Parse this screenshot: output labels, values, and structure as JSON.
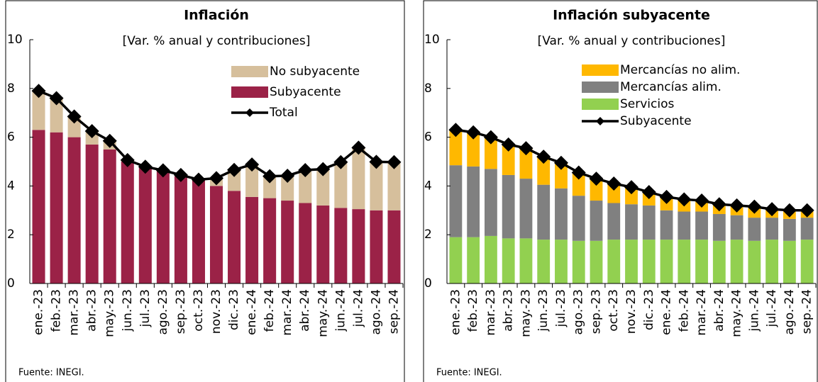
{
  "charts": [
    {
      "type": "bar",
      "stacked": true,
      "title": "Inflación",
      "subtitle": "[Var. % anual y contribuciones]",
      "source": "Fuente: INEGI.",
      "legend": "upper right",
      "categories": [
        "ene.-23",
        "feb.-23",
        "mar.-23",
        "abr.-23",
        "may.-23",
        "jun.-23",
        "jul.-23",
        "ago.-23",
        "sep.-23",
        "oct.-23",
        "nov.-23",
        "dic.-23",
        "ene.-24",
        "feb.-24",
        "mar.-24",
        "abr.-24",
        "may.-24",
        "jun.-24",
        "jul.-24",
        "ago.-24",
        "sep.-24"
      ],
      "ylim": [
        0,
        10
      ],
      "yticks": [
        0,
        2,
        4,
        6,
        8,
        10
      ],
      "series": [
        {
          "name": "No subyacente",
          "color": "#d6bf9c",
          "values": [
            1.6,
            1.4,
            0.85,
            0.55,
            0.35,
            0.06,
            0.04,
            0.04,
            0.05,
            0.01,
            0.32,
            0.86,
            1.33,
            0.9,
            1.02,
            1.35,
            1.49,
            1.88,
            2.52,
            1.99,
            1.98
          ]
        },
        {
          "name": "Subyacente",
          "color": "#9b2247",
          "values": [
            6.3,
            6.2,
            6.0,
            5.7,
            5.5,
            5.0,
            4.75,
            4.6,
            4.4,
            4.25,
            4.0,
            3.8,
            3.55,
            3.5,
            3.4,
            3.3,
            3.2,
            3.1,
            3.05,
            3.0,
            3.0
          ]
        },
        {
          "name": "Total",
          "color": "#000000",
          "type": "line",
          "values": [
            7.9,
            7.6,
            6.85,
            6.25,
            5.85,
            5.06,
            4.79,
            4.64,
            4.45,
            4.26,
            4.32,
            4.66,
            4.88,
            4.4,
            4.42,
            4.65,
            4.69,
            4.98,
            5.57,
            4.99,
            4.98
          ]
        }
      ]
    },
    {
      "type": "bar",
      "stacked": true,
      "title": "Inflación subyacente",
      "subtitle": "[Var. % anual y contribuciones]",
      "source": "Fuente: INEGI.",
      "legend": "upper center",
      "categories": [
        "ene.-23",
        "feb.-23",
        "mar.-23",
        "abr.-23",
        "may.-23",
        "jun.-23",
        "jul.-23",
        "ago.-23",
        "sep.-23",
        "oct.-23",
        "nov.-23",
        "dic.-23",
        "ene.-24",
        "feb.-24",
        "mar.-24",
        "abr.-24",
        "may.-24",
        "jun.-24",
        "jul.-24",
        "ago.-24",
        "sep.-24"
      ],
      "ylim": [
        0,
        10
      ],
      "yticks": [
        0,
        2,
        4,
        6,
        8,
        10
      ],
      "series": [
        {
          "name": "Mercancías no alim.",
          "color": "#ffb800",
          "values": [
            1.45,
            1.4,
            1.3,
            1.25,
            1.25,
            1.15,
            1.05,
            0.95,
            0.9,
            0.8,
            0.7,
            0.55,
            0.55,
            0.5,
            0.45,
            0.4,
            0.4,
            0.45,
            0.35,
            0.35,
            0.3
          ]
        },
        {
          "name": "Mercancías alim.",
          "color": "#808080",
          "values": [
            2.95,
            2.9,
            2.75,
            2.6,
            2.45,
            2.25,
            2.1,
            1.85,
            1.65,
            1.5,
            1.45,
            1.4,
            1.2,
            1.15,
            1.15,
            1.1,
            1.0,
            0.95,
            0.9,
            0.9,
            0.9
          ]
        },
        {
          "name": "Servicios",
          "color": "#92d050",
          "values": [
            1.9,
            1.9,
            1.95,
            1.85,
            1.85,
            1.8,
            1.8,
            1.75,
            1.75,
            1.8,
            1.8,
            1.8,
            1.8,
            1.8,
            1.8,
            1.75,
            1.8,
            1.75,
            1.8,
            1.75,
            1.8
          ]
        },
        {
          "name": "Subyacente",
          "color": "#000000",
          "type": "line",
          "values": [
            6.3,
            6.2,
            6.0,
            5.7,
            5.55,
            5.2,
            4.95,
            4.55,
            4.3,
            4.1,
            3.95,
            3.75,
            3.55,
            3.45,
            3.4,
            3.25,
            3.2,
            3.15,
            3.05,
            3.0,
            3.0
          ]
        }
      ]
    }
  ]
}
